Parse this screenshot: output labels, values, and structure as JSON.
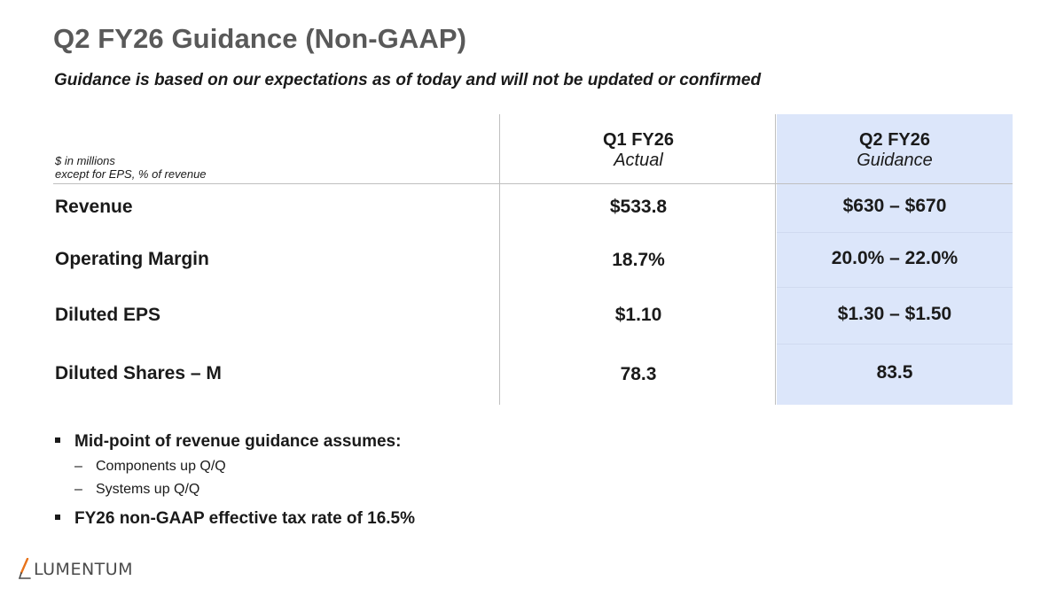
{
  "slide": {
    "title": "Q2 FY26 Guidance (Non-GAAP)",
    "subtitle": "Guidance is based on our expectations as of today and will not be updated or confirmed"
  },
  "table": {
    "units_line1": "$ in millions",
    "units_line2": "except for EPS, % of revenue",
    "columns": [
      {
        "title": "Q1 FY26",
        "subtitle": "Actual"
      },
      {
        "title": "Q2 FY26",
        "subtitle": "Guidance"
      }
    ],
    "rows": [
      {
        "label": "Revenue",
        "actual": "$533.8",
        "guidance": "$630 – $670"
      },
      {
        "label": "Operating Margin",
        "actual": "18.7%",
        "guidance": "20.0% – 22.0%"
      },
      {
        "label": "Diluted EPS",
        "actual": "$1.10",
        "guidance": "$1.30 – $1.50"
      },
      {
        "label": "Diluted Shares – M",
        "actual": "78.3",
        "guidance": "83.5"
      }
    ],
    "guidance_fill": "#dce6fa"
  },
  "notes": {
    "bullet1": "Mid-point of revenue guidance assumes:",
    "sub1": "Components up Q/Q",
    "sub2": "Systems up Q/Q",
    "bullet2": "FY26 non-GAAP effective tax rate of 16.5%",
    "dash": "–"
  },
  "logo": {
    "text": "LUMENTUM",
    "accent_color": "#e8731a"
  }
}
